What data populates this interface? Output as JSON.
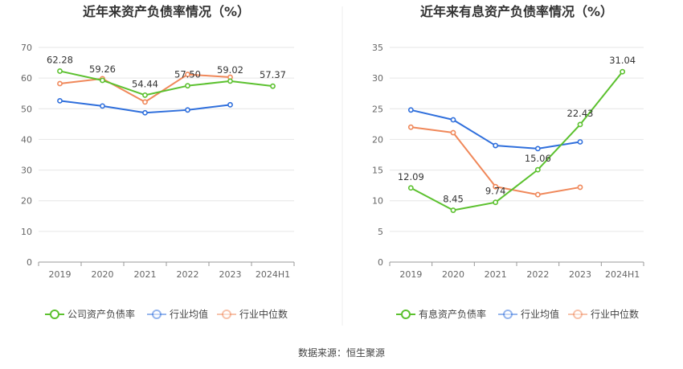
{
  "source_label": "数据来源：恒生聚源",
  "colors": {
    "green": "#5cc12f",
    "blue": "#2f6fdc",
    "orange": "#f0885a",
    "grid": "#e6e6e6",
    "axis": "#999999"
  },
  "chart_data": [
    {
      "type": "line",
      "title": "近年来资产负债率情况（%）",
      "categories": [
        "2019",
        "2020",
        "2021",
        "2022",
        "2023",
        "2024H1"
      ],
      "ylim": [
        0,
        70
      ],
      "yticks": [
        0,
        10,
        20,
        30,
        40,
        50,
        60,
        70
      ],
      "grid": true,
      "legend_position": "bottom",
      "series": [
        {
          "name": "公司资产负债率",
          "color": "#5cc12f",
          "values": [
            62.28,
            59.26,
            54.44,
            57.5,
            59.02,
            57.37
          ],
          "labels": [
            "62.28",
            "59.26",
            "54.44",
            "57.50",
            "59.02",
            "57.37"
          ]
        },
        {
          "name": "行业均值",
          "color": "#2f6fdc",
          "values": [
            52.6,
            50.9,
            48.7,
            49.6,
            51.3,
            null
          ]
        },
        {
          "name": "行业中位数",
          "color": "#f0885a",
          "values": [
            58.2,
            59.8,
            52.2,
            61.2,
            60.3,
            null
          ]
        }
      ]
    },
    {
      "type": "line",
      "title": "近年来有息资产负债率情况（%）",
      "categories": [
        "2019",
        "2020",
        "2021",
        "2022",
        "2023",
        "2024H1"
      ],
      "ylim": [
        0,
        35
      ],
      "yticks": [
        0,
        5,
        10,
        15,
        20,
        25,
        30,
        35
      ],
      "grid": true,
      "legend_position": "bottom",
      "series": [
        {
          "name": "有息资产负债率",
          "color": "#5cc12f",
          "values": [
            12.09,
            8.45,
            9.74,
            15.06,
            22.43,
            31.04
          ],
          "labels": [
            "12.09",
            "8.45",
            "9.74",
            "15.06",
            "22.43",
            "31.04"
          ]
        },
        {
          "name": "行业均值",
          "color": "#2f6fdc",
          "values": [
            24.8,
            23.2,
            19.0,
            18.5,
            19.6,
            null
          ]
        },
        {
          "name": "行业中位数",
          "color": "#f0885a",
          "values": [
            22.0,
            21.1,
            12.3,
            11.0,
            12.2,
            null
          ]
        }
      ]
    }
  ]
}
